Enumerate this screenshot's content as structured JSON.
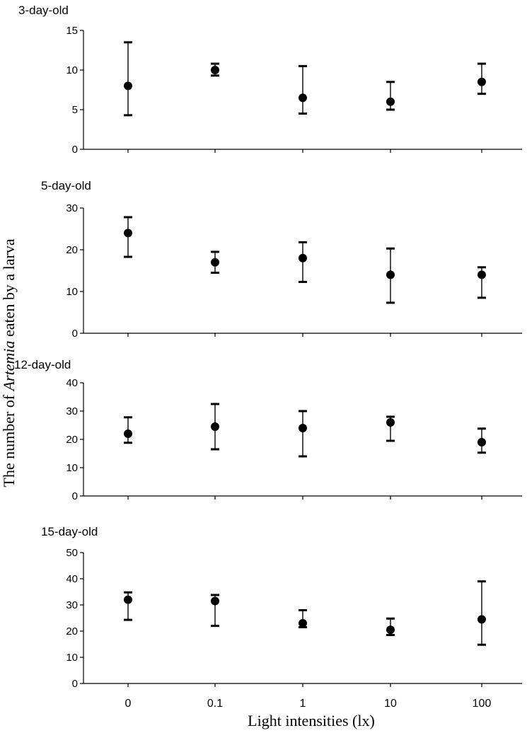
{
  "chart_data": {
    "type": "scatter",
    "xlabel": "Light intensities (lx)",
    "ylabel_prefix": "The number of ",
    "ylabel_italic": "Artemia",
    "ylabel_suffix": " eaten by a larva",
    "categories": [
      "0",
      "0.1",
      "1",
      "10",
      "100"
    ],
    "panels": [
      {
        "title": "3-day-old",
        "ylim": [
          0,
          15
        ],
        "yticks": [
          "0",
          "5",
          "10",
          "15"
        ],
        "tick_values": [
          0,
          5,
          10,
          15
        ],
        "values": [
          8,
          10,
          6.5,
          6,
          8.5
        ],
        "err_low": [
          4.3,
          9.3,
          4.5,
          5.0,
          7.0
        ],
        "err_high": [
          13.5,
          10.8,
          10.5,
          8.5,
          10.8
        ]
      },
      {
        "title": "5-day-old",
        "ylim": [
          0,
          30
        ],
        "yticks": [
          "0",
          "10",
          "20",
          "30"
        ],
        "tick_values": [
          0,
          10,
          20,
          30
        ],
        "values": [
          24,
          17,
          18,
          14,
          14
        ],
        "err_low": [
          18.3,
          14.5,
          12.3,
          7.3,
          8.5
        ],
        "err_high": [
          27.8,
          19.5,
          21.8,
          20.3,
          15.8
        ]
      },
      {
        "title": "12-day-old",
        "ylim": [
          0,
          40
        ],
        "yticks": [
          "0",
          "10",
          "20",
          "30",
          "40"
        ],
        "tick_values": [
          0,
          10,
          20,
          30,
          40
        ],
        "values": [
          22,
          24.5,
          24,
          26,
          19
        ],
        "err_low": [
          18.8,
          16.5,
          14.0,
          19.5,
          15.3
        ],
        "err_high": [
          27.8,
          32.5,
          30.0,
          28.0,
          23.8
        ]
      },
      {
        "title": "15-day-old",
        "ylim": [
          0,
          50
        ],
        "yticks": [
          "0",
          "10",
          "20",
          "30",
          "40",
          "50"
        ],
        "tick_values": [
          0,
          10,
          20,
          30,
          40,
          50
        ],
        "values": [
          32,
          31.5,
          23,
          20.5,
          24.5
        ],
        "err_low": [
          24.3,
          22.0,
          21.5,
          18.5,
          14.8
        ],
        "err_high": [
          34.8,
          33.8,
          28.0,
          24.8,
          39.0
        ]
      }
    ]
  }
}
